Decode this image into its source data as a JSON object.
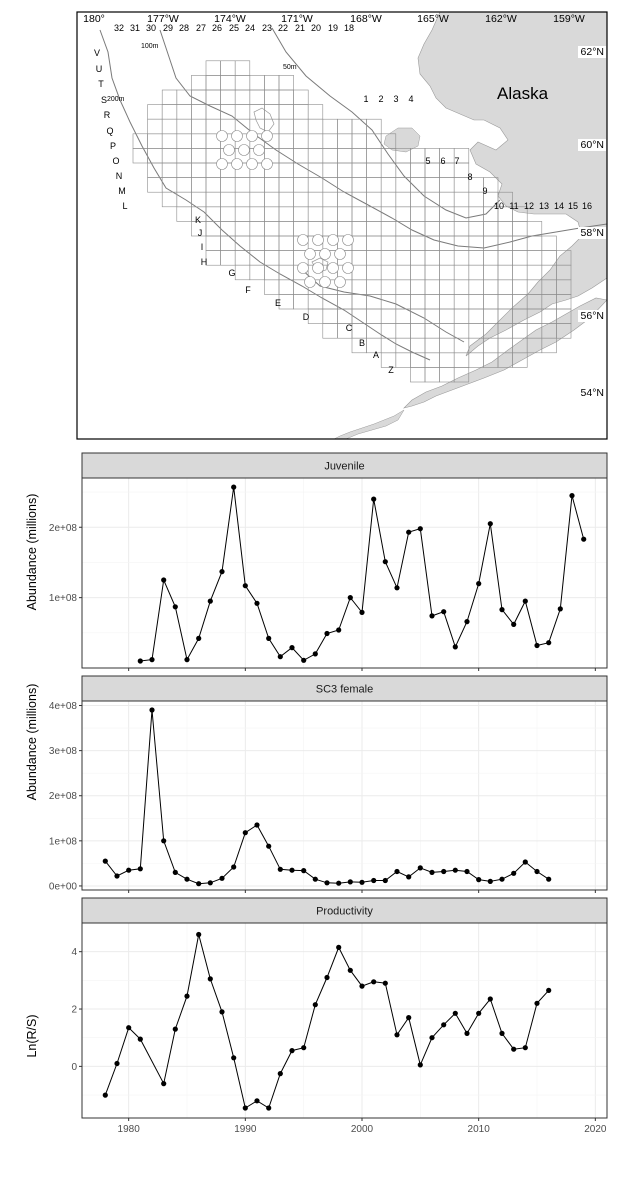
{
  "map": {
    "lon_labels": [
      "180°",
      "177°W",
      "174°W",
      "171°W",
      "168°W",
      "165°W",
      "162°W",
      "159°W"
    ],
    "lat_labels": [
      "62°N",
      "60°N",
      "58°N",
      "56°N",
      "54°N"
    ],
    "land_label": "Alaska",
    "depth_labels": [
      "100m",
      "50m",
      "200m"
    ],
    "col_labels_top": [
      "32",
      "31",
      "30",
      "29",
      "28",
      "27",
      "26",
      "25",
      "24",
      "23",
      "22",
      "21",
      "20",
      "19",
      "18"
    ],
    "col_labels_east_upper": [
      "1",
      "2",
      "3",
      "4"
    ],
    "col_labels_east_mid": [
      "5",
      "6",
      "7"
    ],
    "col_labels_east_8": "8",
    "col_labels_east_9": "9",
    "col_labels_east_low": [
      "10",
      "11",
      "12",
      "13",
      "14",
      "15",
      "16"
    ],
    "row_labels_west": [
      "V",
      "U",
      "T",
      "S",
      "R",
      "Q",
      "P",
      "O",
      "N",
      "M",
      "L"
    ],
    "row_labels_mid": [
      "K",
      "J",
      "I",
      "H"
    ],
    "row_labels_south": [
      "G",
      "F",
      "E",
      "D",
      "C",
      "B",
      "A",
      "Z"
    ],
    "colors": {
      "land": "#d9d9d9",
      "grid": "#8c8c8c",
      "contour": "#7a7a7a",
      "frame": "#000000"
    }
  },
  "chart_data": [
    {
      "type": "line",
      "title": "Juvenile",
      "ylabel": "Abundance (millions)",
      "xlabel": "",
      "xlim": [
        1976,
        2021
      ],
      "ylim": [
        0,
        270000000
      ],
      "ytick_values": [
        100000000,
        200000000
      ],
      "ytick_labels": [
        "1e+08",
        "2e+08"
      ],
      "xtick_values": [
        1980,
        1990,
        2000,
        2010,
        2020
      ],
      "x": [
        1981,
        1982,
        1983,
        1984,
        1985,
        1986,
        1987,
        1988,
        1989,
        1990,
        1991,
        1992,
        1993,
        1994,
        1995,
        1996,
        1997,
        1998,
        1999,
        2000,
        2001,
        2002,
        2003,
        2004,
        2005,
        2006,
        2007,
        2008,
        2009,
        2010,
        2011,
        2012,
        2013,
        2014,
        2015,
        2016,
        2017,
        2018,
        2019
      ],
      "y": [
        10000000,
        12000000,
        125000000,
        87000000,
        12000000,
        42000000,
        95000000,
        137000000,
        257000000,
        117000000,
        92000000,
        42000000,
        16000000,
        29000000,
        11000000,
        20000000,
        49000000,
        54000000,
        100000000,
        79000000,
        240000000,
        151000000,
        114000000,
        193000000,
        198000000,
        74000000,
        80000000,
        30000000,
        66000000,
        120000000,
        205000000,
        83000000,
        62000000,
        95000000,
        32000000,
        36000000,
        84000000,
        245000000,
        183000000
      ]
    },
    {
      "type": "line",
      "title": "SC3 female",
      "ylabel": "Abundance (millions)",
      "xlabel": "",
      "xlim": [
        1976,
        2021
      ],
      "ylim": [
        -9000000,
        410000000
      ],
      "ytick_values": [
        0,
        100000000,
        200000000,
        300000000,
        400000000
      ],
      "ytick_labels": [
        "0e+00",
        "1e+08",
        "2e+08",
        "3e+08",
        "4e+08"
      ],
      "xtick_values": [
        1980,
        1990,
        2000,
        2010,
        2020
      ],
      "x": [
        1978,
        1979,
        1980,
        1981,
        1982,
        1983,
        1984,
        1985,
        1986,
        1987,
        1988,
        1989,
        1990,
        1991,
        1992,
        1993,
        1994,
        1995,
        1996,
        1997,
        1998,
        1999,
        2000,
        2001,
        2002,
        2003,
        2004,
        2005,
        2006,
        2007,
        2008,
        2009,
        2010,
        2011,
        2012,
        2013,
        2014,
        2015,
        2016
      ],
      "y": [
        55000000,
        22000000,
        35000000,
        38000000,
        390000000,
        100000000,
        30000000,
        15000000,
        5000000,
        7000000,
        17000000,
        42000000,
        118000000,
        135000000,
        88000000,
        37000000,
        35000000,
        34000000,
        15000000,
        7000000,
        6000000,
        9000000,
        8000000,
        12000000,
        12000000,
        32000000,
        20000000,
        40000000,
        30000000,
        32000000,
        35000000,
        32000000,
        14000000,
        10000000,
        15000000,
        28000000,
        53000000,
        32000000,
        15000000
      ]
    },
    {
      "type": "line",
      "title": "Productivity",
      "ylabel": "Ln(R/S)",
      "xlabel": "",
      "xlim": [
        1976,
        2021
      ],
      "ylim": [
        -1.8,
        5.0
      ],
      "ytick_values": [
        0,
        2,
        4
      ],
      "ytick_labels": [
        "0",
        "2",
        "4"
      ],
      "xtick_values": [
        1980,
        1990,
        2000,
        2010,
        2020
      ],
      "xtick_labels": [
        "1980",
        "1990",
        "2000",
        "2010",
        "2020"
      ],
      "x": [
        1978,
        1979,
        1980,
        1981,
        1983,
        1984,
        1985,
        1986,
        1987,
        1988,
        1989,
        1990,
        1991,
        1992,
        1993,
        1994,
        1995,
        1996,
        1997,
        1998,
        1999,
        2000,
        2001,
        2002,
        2003,
        2004,
        2005,
        2006,
        2007,
        2008,
        2009,
        2010,
        2011,
        2012,
        2013,
        2014,
        2015,
        2016
      ],
      "y": [
        -1.0,
        0.1,
        1.35,
        0.95,
        -0.6,
        1.3,
        2.45,
        4.6,
        3.05,
        1.9,
        0.3,
        -1.45,
        -1.2,
        -1.45,
        -0.25,
        0.55,
        0.65,
        2.15,
        3.1,
        4.15,
        3.35,
        2.8,
        2.95,
        2.9,
        1.1,
        1.7,
        0.05,
        1.0,
        1.45,
        1.85,
        1.15,
        1.85,
        2.35,
        1.15,
        0.6,
        0.65,
        2.2,
        2.65
      ]
    }
  ]
}
